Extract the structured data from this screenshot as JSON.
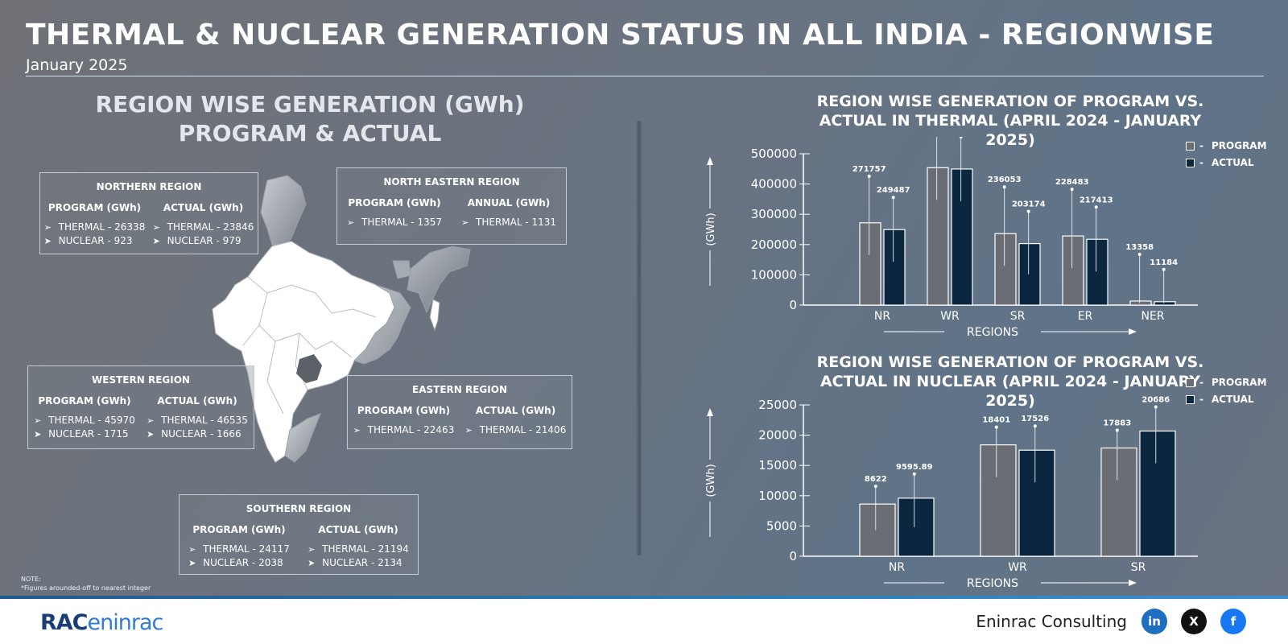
{
  "header": {
    "title": "THERMAL & NUCLEAR GENERATION STATUS IN ALL INDIA - REGIONWISE",
    "date": "January 2025"
  },
  "left_section": {
    "heading_line1": "REGION WISE GENERATION (GWh)",
    "heading_line2": "PROGRAM & ACTUAL"
  },
  "regions": {
    "northern": {
      "title": "NORTHERN REGION",
      "col1_head": "PROGRAM (GWh)",
      "col2_head": "ACTUAL (GWh)",
      "col1": [
        "THERMAL - 26338",
        "NUCLEAR - 923"
      ],
      "col2": [
        "THERMAL - 23846",
        "NUCLEAR - 979"
      ]
    },
    "north_eastern": {
      "title": "NORTH EASTERN REGION",
      "col1_head": "PROGRAM (GWh)",
      "col2_head": "ANNUAL (GWh)",
      "col1": [
        "THERMAL - 1357"
      ],
      "col2": [
        "THERMAL - 1131"
      ]
    },
    "western": {
      "title": "WESTERN REGION",
      "col1_head": "PROGRAM (GWh)",
      "col2_head": "ACTUAL (GWh)",
      "col1": [
        "THERMAL  - 45970",
        "NUCLEAR - 1715"
      ],
      "col2": [
        "THERMAL - 46535",
        "NUCLEAR - 1666"
      ]
    },
    "eastern": {
      "title": "EASTERN REGION",
      "col1_head": "PROGRAM (GWh)",
      "col2_head": "ACTUAL (GWh)",
      "col1": [
        "THERMAL - 22463"
      ],
      "col2": [
        "THERMAL - 21406"
      ]
    },
    "southern": {
      "title": "SOUTHERN REGION",
      "col1_head": "PROGRAM (GWh)",
      "col2_head": "ACTUAL (GWh)",
      "col1": [
        "THERMAL - 24117",
        "NUCLEAR - 2038"
      ],
      "col2": [
        "THERMAL - 21194",
        "NUCLEAR - 2134"
      ]
    }
  },
  "note": {
    "line1": "NOTE:",
    "line2": "*Figures arounded-off to nearest integer"
  },
  "legend": {
    "program": "PROGRAM",
    "actual": "ACTUAL",
    "program_color": "#6a6d74",
    "actual_color": "#0b2740"
  },
  "chart_data": [
    {
      "type": "bar",
      "title": "REGION WISE GENERATION OF PROGRAM VS. ACTUAL IN THERMAL (APRIL 2024 - JANUARY 2025)",
      "categories": [
        "NR",
        "WR",
        "SR",
        "ER",
        "NER"
      ],
      "series": [
        {
          "name": "PROGRAM",
          "values": [
            271757,
            454078,
            236053,
            228483,
            13358
          ]
        },
        {
          "name": "ACTUAL",
          "values": [
            249487,
            449603,
            203174,
            217413,
            11184
          ]
        }
      ],
      "xlabel": "REGIONS",
      "ylabel": "(GWh)",
      "ylim": [
        0,
        500000
      ],
      "yticks": [
        0,
        100000,
        200000,
        300000,
        400000,
        500000
      ],
      "legend": "top-right",
      "grid": false
    },
    {
      "type": "bar",
      "title": "REGION WISE GENERATION OF PROGRAM VS. ACTUAL IN NUCLEAR (APRIL 2024 - JANUARY 2025)",
      "categories": [
        "NR",
        "WR",
        "SR"
      ],
      "series": [
        {
          "name": "PROGRAM",
          "values": [
            8622,
            18401,
            17883
          ]
        },
        {
          "name": "ACTUAL",
          "values": [
            9595.89,
            17526,
            20686
          ]
        }
      ],
      "xlabel": "REGIONS",
      "ylabel": "(GWh)",
      "ylim": [
        0,
        25000
      ],
      "yticks": [
        0,
        5000,
        10000,
        15000,
        20000,
        25000
      ],
      "legend": "top-right",
      "grid": false
    }
  ],
  "footer": {
    "logo_part1": "RAC",
    "logo_part2": "eninrac",
    "brand": "Eninrac Consulting",
    "social": [
      "in",
      "X",
      "f"
    ]
  }
}
